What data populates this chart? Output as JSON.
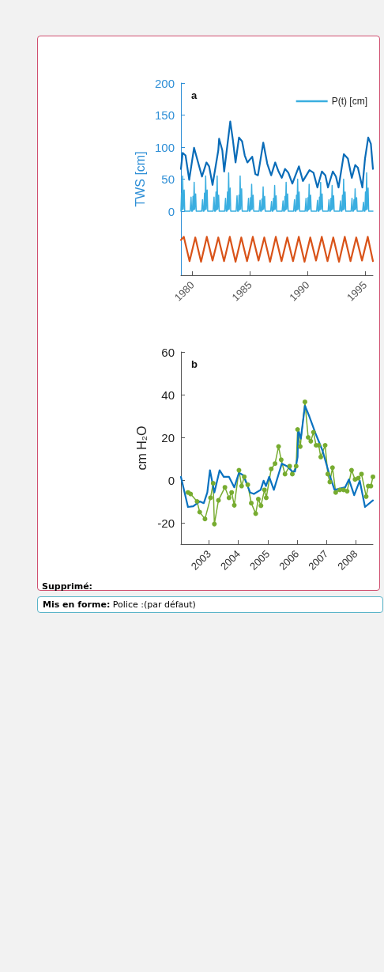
{
  "chart_data": [
    {
      "type": "line",
      "title": "a",
      "ylabel": "TWS [cm]",
      "xlim": [
        1979,
        1995.7
      ],
      "xticks": [
        1980,
        1985,
        1990,
        1995
      ],
      "ylim": [
        -100,
        200
      ],
      "yticks": [
        0,
        50,
        100,
        150,
        200
      ],
      "grid": false,
      "legend": "top right",
      "series": [
        {
          "name": "P(t) [cm]",
          "color": "#3aaee0",
          "marker": "none",
          "x": [
            1979.0,
            1979.05,
            1979.1,
            1979.15,
            1979.2,
            1979.28,
            1979.33,
            1979.8,
            1979.88,
            1979.93,
            1980.0,
            1980.05,
            1980.1,
            1980.15,
            1980.2,
            1980.28,
            1980.33,
            1980.8,
            1980.88,
            1980.93,
            1981.0,
            1981.05,
            1981.1,
            1981.15,
            1981.2,
            1981.28,
            1981.33,
            1981.8,
            1981.88,
            1981.93,
            1982.0,
            1982.05,
            1982.1,
            1982.15,
            1982.2,
            1982.28,
            1982.33,
            1982.8,
            1982.88,
            1982.93,
            1983.0,
            1983.05,
            1983.1,
            1983.15,
            1983.2,
            1983.28,
            1983.33,
            1983.8,
            1983.88,
            1983.93,
            1984.0,
            1984.05,
            1984.1,
            1984.15,
            1984.2,
            1984.28,
            1984.33,
            1984.8,
            1984.88,
            1984.93,
            1985.0,
            1985.05,
            1985.1,
            1985.15,
            1985.2,
            1985.28,
            1985.33,
            1985.8,
            1985.88,
            1985.93,
            1986.0,
            1986.05,
            1986.1,
            1986.15,
            1986.2,
            1986.28,
            1986.33,
            1986.8,
            1986.88,
            1986.93,
            1987.0,
            1987.05,
            1987.1,
            1987.15,
            1987.2,
            1987.28,
            1987.33,
            1987.8,
            1987.88,
            1987.93,
            1988.0,
            1988.05,
            1988.1,
            1988.15,
            1988.2,
            1988.28,
            1988.33,
            1988.8,
            1988.88,
            1988.93,
            1989.0,
            1989.05,
            1989.1,
            1989.15,
            1989.2,
            1989.28,
            1989.33,
            1989.8,
            1989.88,
            1989.93,
            1990.0,
            1990.05,
            1990.1,
            1990.15,
            1990.2,
            1990.28,
            1990.33,
            1990.8,
            1990.88,
            1990.93,
            1991.0,
            1991.05,
            1991.1,
            1991.15,
            1991.2,
            1991.28,
            1991.33,
            1991.8,
            1991.88,
            1991.93,
            1992.0,
            1992.05,
            1992.1,
            1992.15,
            1992.2,
            1992.28,
            1992.33,
            1992.8,
            1992.88,
            1992.93,
            1993.0,
            1993.05,
            1993.1,
            1993.15,
            1993.2,
            1993.28,
            1993.33,
            1993.8,
            1993.88,
            1993.93,
            1994.0,
            1994.05,
            1994.1,
            1994.15,
            1994.2,
            1994.28,
            1994.33,
            1994.8,
            1994.88,
            1994.93,
            1995.0,
            1995.05,
            1995.1,
            1995.15,
            1995.2,
            1995.28,
            1995.33,
            1995.7
          ],
          "values": [
            0,
            28,
            2,
            55,
            3,
            33,
            0,
            0,
            22,
            0,
            0,
            23,
            2,
            45,
            3,
            27,
            0,
            0,
            18,
            0,
            0,
            28,
            2,
            55,
            3,
            33,
            0,
            0,
            22,
            0,
            0,
            30,
            2,
            55,
            3,
            25,
            0,
            0,
            20,
            0,
            0,
            30,
            2,
            60,
            3,
            36,
            0,
            0,
            24,
            0,
            0,
            25,
            2,
            55,
            3,
            35,
            0,
            0,
            20,
            0,
            0,
            21,
            2,
            42,
            3,
            25,
            0,
            0,
            17,
            0,
            0,
            19,
            2,
            38,
            3,
            23,
            0,
            0,
            15,
            0,
            0,
            20,
            2,
            40,
            3,
            24,
            0,
            0,
            16,
            0,
            0,
            23,
            2,
            45,
            3,
            27,
            0,
            0,
            18,
            0,
            0,
            25,
            2,
            50,
            3,
            30,
            0,
            0,
            20,
            0,
            0,
            21,
            2,
            42,
            3,
            25,
            0,
            0,
            17,
            0,
            0,
            22,
            2,
            45,
            3,
            27,
            0,
            0,
            18,
            0,
            0,
            20,
            2,
            40,
            3,
            24,
            0,
            0,
            16,
            0,
            0,
            25,
            2,
            50,
            3,
            30,
            0,
            0,
            20,
            0,
            0,
            18,
            2,
            35,
            3,
            21,
            0,
            0,
            14,
            0,
            0,
            30,
            2,
            60,
            3,
            36,
            0,
            0
          ]
        },
        {
          "color": "#0a6cb8",
          "marker": "none",
          "x": [
            1979.0,
            1979.15,
            1979.4,
            1979.72,
            1980.14,
            1980.4,
            1980.83,
            1981.22,
            1981.45,
            1981.75,
            1982.25,
            1982.32,
            1982.6,
            1982.76,
            1983.29,
            1983.52,
            1983.75,
            1984.05,
            1984.32,
            1984.55,
            1984.78,
            1985.2,
            1985.47,
            1985.7,
            1986.16,
            1986.51,
            1986.85,
            1987.2,
            1987.49,
            1987.77,
            1988.05,
            1988.34,
            1988.69,
            1989.26,
            1989.61,
            1990.18,
            1990.53,
            1990.87,
            1991.26,
            1991.56,
            1991.79,
            1992.21,
            1992.48,
            1992.71,
            1993.17,
            1993.52,
            1993.86,
            1994.16,
            1994.39,
            1994.78,
            1995.01,
            1995.29,
            1995.52,
            1995.7
          ],
          "values": [
            66,
            91,
            87,
            49,
            99,
            82,
            54,
            76,
            70,
            41,
            95,
            113,
            95,
            62,
            140,
            111,
            76,
            115,
            109,
            87,
            76,
            85,
            58,
            56,
            107,
            74,
            56,
            76,
            62,
            52,
            66,
            60,
            43,
            70,
            47,
            64,
            60,
            37,
            62,
            56,
            37,
            62,
            54,
            37,
            89,
            82,
            52,
            72,
            68,
            37,
            82,
            115,
            105,
            66
          ]
        },
        {
          "color": "#d95319",
          "marker": "none",
          "x": [
            1979.0,
            1979.25,
            1979.75,
            1980.25,
            1980.75,
            1981.25,
            1981.75,
            1982.25,
            1982.75,
            1983.25,
            1983.75,
            1984.25,
            1984.75,
            1985.25,
            1985.75,
            1986.25,
            1986.75,
            1987.25,
            1987.75,
            1988.25,
            1988.75,
            1989.25,
            1989.75,
            1990.25,
            1990.75,
            1991.25,
            1991.75,
            1992.25,
            1992.75,
            1993.25,
            1993.75,
            1994.25,
            1994.75,
            1995.25,
            1995.7
          ],
          "values": [
            -45,
            -40,
            -78,
            -41,
            -79,
            -40,
            -77,
            -41,
            -78,
            -40,
            -79,
            -41,
            -78,
            -40,
            -77,
            -41,
            -79,
            -40,
            -78,
            -41,
            -78,
            -40,
            -79,
            -41,
            -77,
            -40,
            -78,
            -41,
            -79,
            -40,
            -78,
            -41,
            -77,
            -40,
            -78
          ]
        }
      ]
    },
    {
      "type": "line",
      "title": "b",
      "ylabel": "cm H₂O",
      "xlim": [
        2002.04,
        2008.59
      ],
      "xticks": [
        2003,
        2004,
        2005,
        2006,
        2007,
        2008
      ],
      "ylim": [
        -30,
        60
      ],
      "yticks": [
        -20,
        0,
        20,
        40,
        60
      ],
      "grid": false,
      "series": [
        {
          "color": "#77ac30",
          "marker": "circle",
          "x": [
            2002.28,
            2002.37,
            2002.59,
            2002.68,
            2002.86,
            2003.05,
            2003.14,
            2003.18,
            2003.32,
            2003.54,
            2003.68,
            2003.77,
            2003.86,
            2004.02,
            2004.11,
            2004.2,
            2004.32,
            2004.44,
            2004.59,
            2004.68,
            2004.77,
            2004.89,
            2004.95,
            2005.12,
            2005.25,
            2005.37,
            2005.46,
            2005.59,
            2005.75,
            2005.84,
            2005.97,
            2006.02,
            2006.11,
            2006.27,
            2006.38,
            2006.47,
            2006.56,
            2006.65,
            2006.74,
            2006.81,
            2006.96,
            2007.05,
            2007.12,
            2007.21,
            2007.32,
            2007.46,
            2007.59,
            2007.71,
            2007.86,
            2007.98,
            2008.09,
            2008.2,
            2008.36,
            2008.43,
            2008.52,
            2008.59
          ],
          "values": [
            -5.8,
            -6.5,
            -10,
            -15,
            -18.2,
            -8.3,
            -1.5,
            -20.6,
            -9.5,
            -3.4,
            -8.3,
            -5.8,
            -11.8,
            4.6,
            -2.8,
            1.5,
            -2.2,
            -10.8,
            -15.7,
            -8.9,
            -12,
            -4.6,
            -8.3,
            5.2,
            7.7,
            15.7,
            9.5,
            2.8,
            6.5,
            2.8,
            6.5,
            23.7,
            15.7,
            36.6,
            20,
            18.2,
            22.4,
            16.3,
            16.3,
            10.8,
            16.3,
            2.8,
            -0.9,
            5.8,
            -5.8,
            -4.6,
            -4.6,
            -5.2,
            4.6,
            0.3,
            0.9,
            2.8,
            -7.7,
            -2.8,
            -2.8,
            1.5
          ]
        },
        {
          "color": "#0a72c0",
          "marker": "none",
          "x": [
            2002.04,
            2002.28,
            2002.46,
            2002.68,
            2002.82,
            2002.94,
            2003.03,
            2003.18,
            2003.36,
            2003.5,
            2003.68,
            2003.86,
            2004.02,
            2004.17,
            2004.4,
            2004.53,
            2004.76,
            2004.86,
            2004.94,
            2005.05,
            2005.21,
            2005.48,
            2005.66,
            2005.84,
            2005.93,
            2006.02,
            2006.04,
            2006.13,
            2006.27,
            2006.42,
            2006.65,
            2006.87,
            2007.1,
            2007.28,
            2007.46,
            2007.64,
            2007.77,
            2007.95,
            2008.14,
            2008.32,
            2008.59
          ],
          "values": [
            1.5,
            -12.6,
            -12.3,
            -10,
            -10.8,
            -5.8,
            4.6,
            -5.8,
            4.6,
            1.5,
            1.5,
            -3.4,
            3.4,
            2.2,
            -5.8,
            -6.5,
            -4.6,
            -0.3,
            -2.8,
            1.5,
            -4.6,
            7.7,
            6.5,
            4,
            4,
            10.8,
            23.7,
            19.4,
            34.8,
            29.8,
            21.2,
            13.8,
            2.8,
            -4.6,
            -4,
            -3.4,
            0.3,
            -7.1,
            -0.3,
            -12.6,
            -9.5
          ]
        }
      ],
      "annotations": [
        "Supprimé:",
        "Mis en forme: Police :(par défaut)"
      ]
    }
  ]
}
